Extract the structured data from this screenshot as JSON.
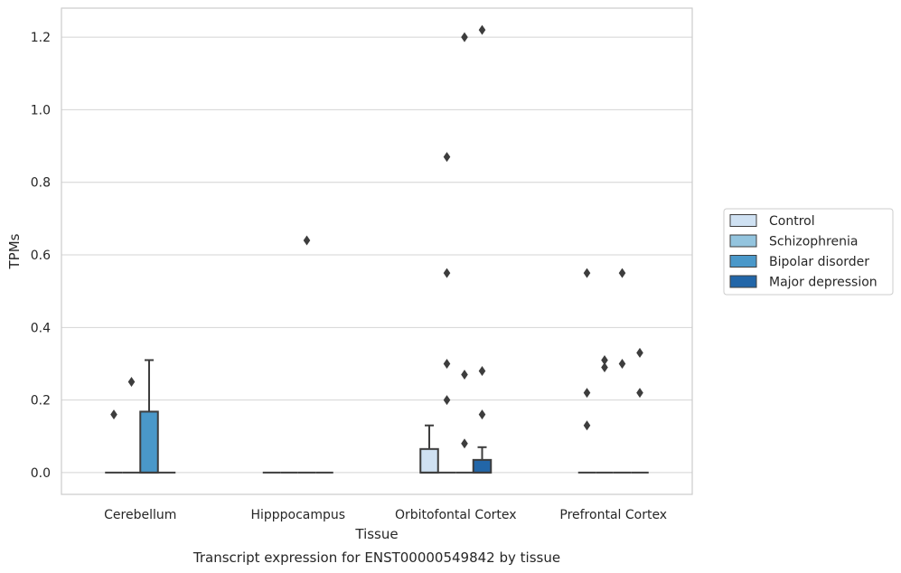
{
  "chart_data": {
    "type": "box",
    "title": "",
    "caption": "Transcript expression for ENST00000549842 by tissue",
    "xlabel": "Tissue",
    "ylabel": "TPMs",
    "ylim": [
      -0.06,
      1.28
    ],
    "yticks": [
      "0.0",
      "0.2",
      "0.4",
      "0.6",
      "0.8",
      "1.0",
      "1.2"
    ],
    "grid": "horizontal",
    "legend_position": "right",
    "categories": [
      "Cerebellum",
      "Hipppocampus",
      "Orbitofontal Cortex",
      "Prefrontal Cortex"
    ],
    "series": [
      {
        "name": "Control",
        "color": "#cfe1f2",
        "boxes": [
          {
            "q1": 0,
            "median": 0,
            "q3": 0,
            "whisker_low": 0,
            "whisker_high": 0,
            "outliers": [
              0.16
            ]
          },
          {
            "q1": 0,
            "median": 0,
            "q3": 0,
            "whisker_low": 0,
            "whisker_high": 0,
            "outliers": []
          },
          {
            "q1": 0,
            "median": 0,
            "q3": 0.065,
            "whisker_low": 0,
            "whisker_high": 0.13,
            "outliers": []
          },
          {
            "q1": 0,
            "median": 0,
            "q3": 0,
            "whisker_low": 0,
            "whisker_high": 0,
            "outliers": [
              0.13,
              0.22,
              0.55
            ]
          }
        ]
      },
      {
        "name": "Schizophrenia",
        "color": "#93c4de",
        "boxes": [
          {
            "q1": 0,
            "median": 0,
            "q3": 0,
            "whisker_low": 0,
            "whisker_high": 0,
            "outliers": [
              0.25
            ]
          },
          {
            "q1": 0,
            "median": 0,
            "q3": 0,
            "whisker_low": 0,
            "whisker_high": 0,
            "outliers": []
          },
          {
            "q1": 0,
            "median": 0,
            "q3": 0,
            "whisker_low": 0,
            "whisker_high": 0,
            "outliers": [
              0.2,
              0.3,
              0.55,
              0.87
            ]
          },
          {
            "q1": 0,
            "median": 0,
            "q3": 0,
            "whisker_low": 0,
            "whisker_high": 0,
            "outliers": [
              0.29,
              0.31
            ]
          }
        ]
      },
      {
        "name": "Bipolar disorder",
        "color": "#4a98c9",
        "boxes": [
          {
            "q1": 0,
            "median": 0,
            "q3": 0.168,
            "whisker_low": 0,
            "whisker_high": 0.31,
            "outliers": []
          },
          {
            "q1": 0,
            "median": 0,
            "q3": 0,
            "whisker_low": 0,
            "whisker_high": 0,
            "outliers": [
              0.64
            ]
          },
          {
            "q1": 0,
            "median": 0,
            "q3": 0,
            "whisker_low": 0,
            "whisker_high": 0,
            "outliers": [
              0.08,
              0.27,
              1.2
            ]
          },
          {
            "q1": 0,
            "median": 0,
            "q3": 0,
            "whisker_low": 0,
            "whisker_high": 0,
            "outliers": [
              0.3,
              0.55
            ]
          }
        ]
      },
      {
        "name": "Major depression",
        "color": "#2266a8",
        "boxes": [
          {
            "q1": 0,
            "median": 0,
            "q3": 0,
            "whisker_low": 0,
            "whisker_high": 0,
            "outliers": []
          },
          {
            "q1": 0,
            "median": 0,
            "q3": 0,
            "whisker_low": 0,
            "whisker_high": 0,
            "outliers": []
          },
          {
            "q1": 0,
            "median": 0,
            "q3": 0.035,
            "whisker_low": 0,
            "whisker_high": 0.07,
            "outliers": [
              0.16,
              0.28,
              1.22
            ]
          },
          {
            "q1": 0,
            "median": 0,
            "q3": 0,
            "whisker_low": 0,
            "whisker_high": 0,
            "outliers": [
              0.22,
              0.33
            ]
          }
        ]
      }
    ]
  }
}
